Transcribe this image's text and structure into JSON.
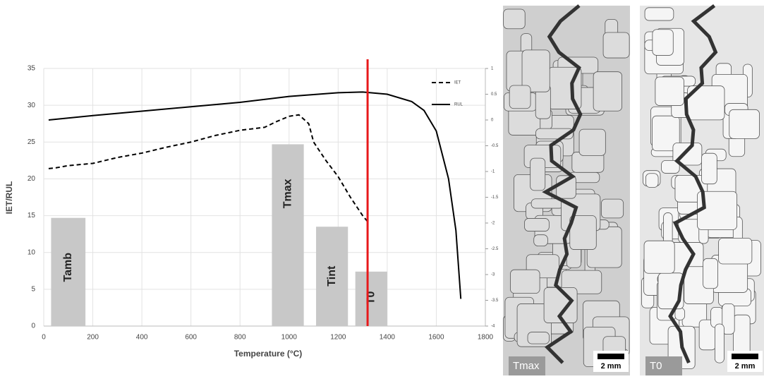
{
  "chart_data": {
    "type": "line",
    "xlabel": "Temperature (°C)",
    "ylabel": "IET/RUL",
    "xlim": [
      0,
      1800
    ],
    "xticks": [
      0,
      200,
      400,
      600,
      800,
      1000,
      1200,
      1400,
      1600,
      1800
    ],
    "ylim": [
      0,
      35
    ],
    "yticks": [
      0,
      5,
      10,
      15,
      20,
      25,
      30,
      35
    ],
    "y2lim": [
      -4,
      1
    ],
    "y2ticks": [
      1,
      0.5,
      0,
      -0.5,
      -1,
      -1.5,
      -2,
      -2.5,
      -3,
      -3.5,
      -4
    ],
    "grid": true,
    "legend": "top-right",
    "series": [
      {
        "name": "IET",
        "color": "#000000",
        "dash": true,
        "x": [
          20,
          50,
          100,
          200,
          300,
          400,
          500,
          600,
          700,
          800,
          900,
          950,
          1000,
          1040,
          1080,
          1100,
          1150,
          1200,
          1250,
          1300,
          1320
        ],
        "values": [
          21.4,
          21.5,
          21.8,
          22.1,
          22.9,
          23.5,
          24.3,
          25.0,
          25.9,
          26.6,
          27.0,
          27.8,
          28.5,
          28.7,
          27.5,
          25.0,
          22.5,
          20.3,
          17.5,
          15.0,
          14.2
        ]
      },
      {
        "name": "RUL",
        "color": "#000000",
        "dash": false,
        "x": [
          20,
          200,
          400,
          600,
          800,
          1000,
          1200,
          1300,
          1400,
          1500,
          1550,
          1600,
          1650,
          1680,
          1700
        ],
        "values": [
          28.0,
          28.6,
          29.2,
          29.8,
          30.4,
          31.2,
          31.7,
          31.8,
          31.5,
          30.5,
          29.3,
          26.5,
          20.0,
          13.0,
          3.7
        ]
      }
    ],
    "bars": [
      {
        "label": "Tamb",
        "x": [
          30,
          170
        ],
        "value": 14.7
      },
      {
        "label": "Tmax",
        "x": [
          930,
          1060
        ],
        "value": 24.7
      },
      {
        "label": "Tint",
        "x": [
          1110,
          1240
        ],
        "value": 13.5
      },
      {
        "label": "T0",
        "x": [
          1270,
          1400
        ],
        "value": 7.4
      }
    ],
    "bar_color": "#c8c8c8",
    "marker_x": 1320,
    "marker_color": "#e8191b"
  },
  "micrographs": [
    {
      "label": "Tmax",
      "scale": "2 mm"
    },
    {
      "label": "T0",
      "scale": "2 mm"
    }
  ]
}
